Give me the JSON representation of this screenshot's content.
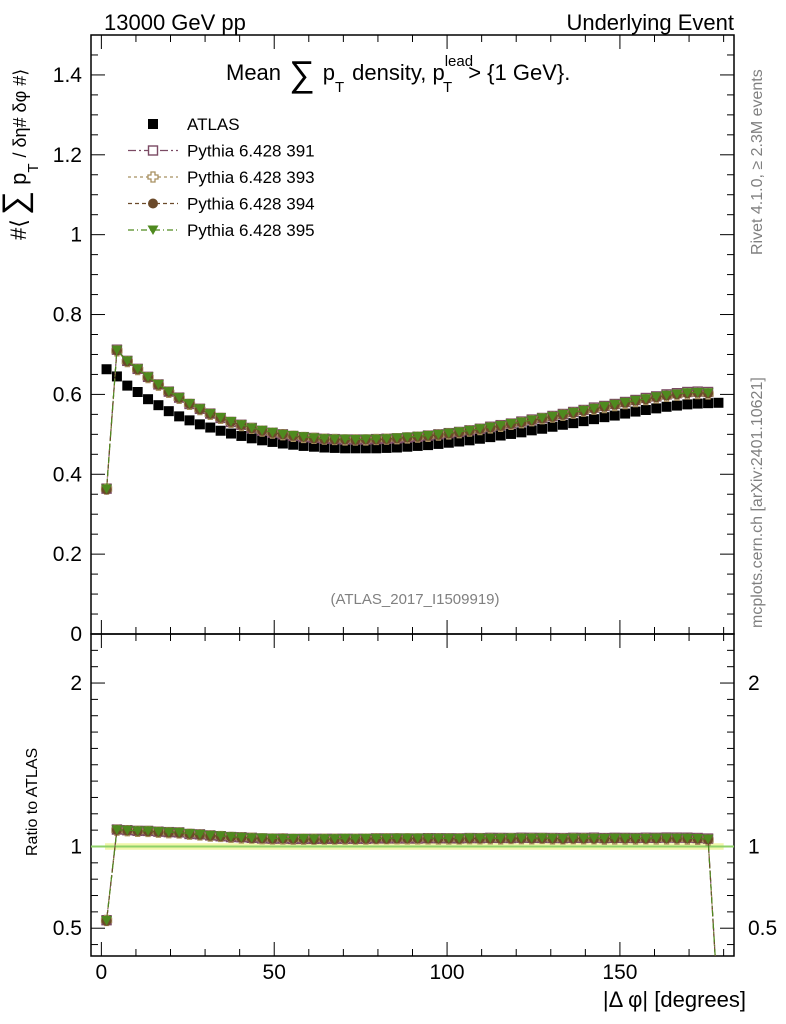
{
  "header": {
    "left": "13000 GeV pp",
    "right": "Underlying Event"
  },
  "side": {
    "rivet": "Rivet 4.1.0, ≥ 2.3M events",
    "mcplots": "mcplots.cern.ch [arXiv:2401.10621]"
  },
  "chart_data": {
    "type": "line",
    "title": {
      "mean": "Mean",
      "sum": "∑",
      "p": "p",
      "t": "T",
      "density": "density, p",
      "lead": "lead",
      "t2": "T",
      "cut": "> {1 GeV}."
    },
    "analysis_tag": "(ATLAS_2017_I1509919)",
    "ylabel": {
      "open": "#⟨",
      "sum": "∑",
      "p": "p",
      "t": "T",
      "rest": "/ δη# δφ #⟩"
    },
    "ratio_ylabel": "Ratio to ATLAS",
    "xlabel": "|Δ φ| [degrees]",
    "xlim": [
      -3,
      183
    ],
    "ylim": [
      0,
      1.5
    ],
    "ratio_ylim": [
      0.33,
      2.3
    ],
    "xticks": [
      "0",
      "50",
      "100",
      "150"
    ],
    "yticks": [
      "0",
      "0.2",
      "0.4",
      "0.6",
      "0.8",
      "1",
      "1.2",
      "1.4"
    ],
    "ratio_yticks": [
      "0.5",
      "1",
      "2"
    ],
    "x": [
      1.5,
      4.5,
      7.5,
      10.5,
      13.5,
      16.5,
      19.5,
      22.5,
      25.5,
      28.5,
      31.5,
      34.5,
      37.5,
      40.5,
      43.5,
      46.5,
      49.5,
      52.5,
      55.5,
      58.5,
      61.5,
      64.5,
      67.5,
      70.5,
      73.5,
      76.5,
      79.5,
      82.5,
      85.5,
      88.5,
      91.5,
      94.5,
      97.5,
      100.5,
      103.5,
      106.5,
      109.5,
      112.5,
      115.5,
      118.5,
      121.5,
      124.5,
      127.5,
      130.5,
      133.5,
      136.5,
      139.5,
      142.5,
      145.5,
      148.5,
      151.5,
      154.5,
      157.5,
      160.5,
      163.5,
      166.5,
      169.5,
      172.5,
      175.5,
      178.5
    ],
    "series": [
      {
        "name": "ATLAS",
        "color": "#000000",
        "marker": "square",
        "values": [
          0.663,
          0.645,
          0.622,
          0.606,
          0.588,
          0.573,
          0.558,
          0.545,
          0.535,
          0.525,
          0.517,
          0.509,
          0.502,
          0.496,
          0.49,
          0.485,
          0.481,
          0.477,
          0.474,
          0.471,
          0.469,
          0.467,
          0.466,
          0.465,
          0.465,
          0.465,
          0.465,
          0.466,
          0.467,
          0.469,
          0.471,
          0.473,
          0.476,
          0.479,
          0.482,
          0.485,
          0.489,
          0.493,
          0.497,
          0.501,
          0.505,
          0.51,
          0.514,
          0.519,
          0.524,
          0.528,
          0.533,
          0.538,
          0.543,
          0.547,
          0.552,
          0.557,
          0.561,
          0.565,
          0.569,
          0.572,
          0.575,
          0.577,
          0.578,
          0.579
        ]
      },
      {
        "name": "Pythia 6.428 391",
        "color": "#7b4a63",
        "marker": "open-square",
        "dash": "8,3,2,3",
        "values": [
          0.364,
          0.712,
          0.684,
          0.664,
          0.644,
          0.625,
          0.607,
          0.592,
          0.576,
          0.564,
          0.552,
          0.541,
          0.531,
          0.524,
          0.516,
          0.509,
          0.504,
          0.5,
          0.496,
          0.493,
          0.491,
          0.489,
          0.488,
          0.487,
          0.487,
          0.487,
          0.488,
          0.489,
          0.49,
          0.492,
          0.494,
          0.497,
          0.5,
          0.503,
          0.506,
          0.51,
          0.514,
          0.519,
          0.523,
          0.527,
          0.532,
          0.537,
          0.541,
          0.546,
          0.551,
          0.556,
          0.561,
          0.567,
          0.571,
          0.576,
          0.581,
          0.586,
          0.591,
          0.595,
          0.6,
          0.603,
          0.606,
          0.607,
          0.606,
          0.0
        ]
      },
      {
        "name": "Pythia 6.428 393",
        "color": "#a89060",
        "marker": "open-cross",
        "dash": "3,3",
        "values": [
          0.363,
          0.709,
          0.682,
          0.662,
          0.642,
          0.623,
          0.605,
          0.59,
          0.575,
          0.562,
          0.55,
          0.54,
          0.53,
          0.522,
          0.515,
          0.508,
          0.503,
          0.499,
          0.495,
          0.492,
          0.49,
          0.488,
          0.487,
          0.486,
          0.486,
          0.486,
          0.487,
          0.488,
          0.489,
          0.491,
          0.493,
          0.495,
          0.498,
          0.501,
          0.504,
          0.508,
          0.512,
          0.516,
          0.52,
          0.525,
          0.529,
          0.534,
          0.539,
          0.543,
          0.548,
          0.553,
          0.558,
          0.563,
          0.567,
          0.572,
          0.577,
          0.582,
          0.587,
          0.591,
          0.595,
          0.598,
          0.601,
          0.602,
          0.601,
          0.0
        ]
      },
      {
        "name": "Pythia 6.428 394",
        "color": "#6b4a2a",
        "marker": "circle",
        "dash": "4,3",
        "values": [
          0.362,
          0.71,
          0.683,
          0.663,
          0.643,
          0.624,
          0.606,
          0.591,
          0.576,
          0.563,
          0.551,
          0.541,
          0.531,
          0.523,
          0.515,
          0.509,
          0.504,
          0.5,
          0.496,
          0.493,
          0.49,
          0.488,
          0.487,
          0.487,
          0.486,
          0.487,
          0.487,
          0.488,
          0.49,
          0.492,
          0.494,
          0.496,
          0.499,
          0.502,
          0.505,
          0.509,
          0.513,
          0.517,
          0.521,
          0.526,
          0.53,
          0.535,
          0.54,
          0.544,
          0.549,
          0.554,
          0.559,
          0.564,
          0.569,
          0.574,
          0.579,
          0.584,
          0.588,
          0.593,
          0.597,
          0.6,
          0.603,
          0.604,
          0.603,
          0.0
        ]
      },
      {
        "name": "Pythia 6.428 395",
        "color": "#4f8a1f",
        "marker": "triangle-down",
        "dash": "6,3,1,3",
        "values": [
          0.363,
          0.711,
          0.684,
          0.664,
          0.644,
          0.625,
          0.607,
          0.592,
          0.577,
          0.564,
          0.552,
          0.542,
          0.532,
          0.524,
          0.516,
          0.51,
          0.505,
          0.5,
          0.497,
          0.494,
          0.491,
          0.489,
          0.488,
          0.488,
          0.487,
          0.488,
          0.488,
          0.489,
          0.491,
          0.493,
          0.495,
          0.497,
          0.5,
          0.503,
          0.506,
          0.51,
          0.514,
          0.518,
          0.522,
          0.527,
          0.531,
          0.536,
          0.541,
          0.545,
          0.55,
          0.555,
          0.56,
          0.565,
          0.57,
          0.575,
          0.58,
          0.585,
          0.589,
          0.594,
          0.598,
          0.601,
          0.604,
          0.605,
          0.604,
          0.0
        ]
      }
    ]
  }
}
